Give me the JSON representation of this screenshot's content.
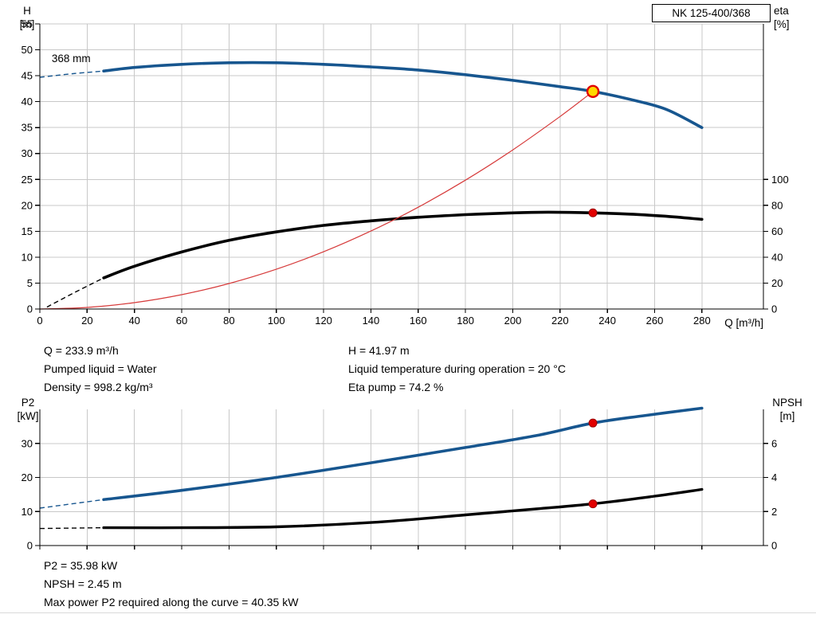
{
  "colors": {
    "curve_blue": "#17568f",
    "curve_black": "#000000",
    "curve_red": "#d63a3a",
    "marker_red": "#e10000",
    "marker_yellow": "#ffd800",
    "grid": "#c8c8c8",
    "axis": "#000000"
  },
  "chart_data": [
    {
      "id": "hq-chart",
      "type": "line",
      "title": "NK 125-400/368",
      "xlabel": "Q [m³/h]",
      "ylabel_left_lines": [
        "H",
        "[m]"
      ],
      "ylabel_right_lines": [
        "eta",
        "[%]"
      ],
      "xlim": [
        0,
        306
      ],
      "ylim_left": [
        0,
        55
      ],
      "ylim_right": [
        0,
        220
      ],
      "xticks": [
        0,
        20,
        40,
        60,
        80,
        100,
        120,
        140,
        160,
        180,
        200,
        220,
        240,
        260,
        280
      ],
      "yticks_left": [
        0,
        5,
        10,
        15,
        20,
        25,
        30,
        35,
        40,
        45,
        50,
        55
      ],
      "yticks_right": [
        0,
        20,
        40,
        60,
        80,
        100
      ],
      "grid": true,
      "legend": "none",
      "series": [
        {
          "name": "head-curve",
          "axis": "left",
          "color": "#17568f",
          "width": 3.6,
          "dash_points": [
            [
              0,
              44.7
            ],
            [
              14,
              45.4
            ],
            [
              27,
              45.9
            ]
          ],
          "points": [
            [
              27,
              45.9
            ],
            [
              40,
              46.6
            ],
            [
              60,
              47.2
            ],
            [
              80,
              47.5
            ],
            [
              100,
              47.5
            ],
            [
              120,
              47.2
            ],
            [
              140,
              46.7
            ],
            [
              160,
              46.1
            ],
            [
              180,
              45.2
            ],
            [
              200,
              44.1
            ],
            [
              220,
              42.9
            ],
            [
              233.9,
              41.97
            ],
            [
              250,
              40.4
            ],
            [
              265,
              38.5
            ],
            [
              280,
              35.0
            ]
          ]
        },
        {
          "name": "efficiency-curve",
          "axis": "right",
          "color": "#000000",
          "width": 3.6,
          "dash_points": [
            [
              3,
              1.5
            ],
            [
              15,
              13
            ],
            [
              27,
              24
            ]
          ],
          "points": [
            [
              27,
              24
            ],
            [
              40,
              33
            ],
            [
              60,
              44
            ],
            [
              80,
              53
            ],
            [
              100,
              59.5
            ],
            [
              120,
              64.5
            ],
            [
              140,
              68
            ],
            [
              160,
              70.8
            ],
            [
              180,
              72.8
            ],
            [
              200,
              74.2
            ],
            [
              215,
              74.7
            ],
            [
              233.9,
              74.2
            ],
            [
              250,
              73.2
            ],
            [
              265,
              71.5
            ],
            [
              280,
              69.2
            ]
          ]
        },
        {
          "name": "system-curve",
          "axis": "left",
          "color": "#d63a3a",
          "width": 1.2,
          "points": [
            [
              0,
              0
            ],
            [
              20,
              0.31
            ],
            [
              40,
              1.23
            ],
            [
              60,
              2.76
            ],
            [
              80,
              4.91
            ],
            [
              100,
              7.67
            ],
            [
              120,
              11.05
            ],
            [
              140,
              15.04
            ],
            [
              160,
              19.64
            ],
            [
              180,
              24.86
            ],
            [
              200,
              30.69
            ],
            [
              220,
              37.14
            ],
            [
              233.9,
              41.97
            ]
          ]
        }
      ],
      "markers": [
        {
          "name": "duty-point-marker",
          "x": 233.9,
          "y": 41.97,
          "axis": "left",
          "r": 7,
          "fill": "#ffd800",
          "stroke": "#e10000",
          "stroke_width": 2.4
        },
        {
          "name": "eta-point-marker",
          "x": 233.9,
          "y": 74.2,
          "axis": "right",
          "r": 5,
          "fill": "#e10000",
          "stroke": "#9b0000",
          "stroke_width": 1
        }
      ],
      "annotations": [
        {
          "name": "impeller-diameter-label",
          "text": "368 mm",
          "x": 5,
          "y": 47.6
        }
      ]
    },
    {
      "id": "p2-npsh-chart",
      "type": "line",
      "title": "",
      "xlabel": "",
      "ylabel_left_lines": [
        "P2",
        "[kW]"
      ],
      "ylabel_right_lines": [
        "NPSH",
        "[m]"
      ],
      "xlim": [
        0,
        306
      ],
      "ylim_left": [
        0,
        40
      ],
      "ylim_right": [
        0,
        8
      ],
      "xticks": [
        0,
        20,
        40,
        60,
        80,
        100,
        120,
        140,
        160,
        180,
        200,
        220,
        240,
        260,
        280
      ],
      "yticks_left": [
        0,
        10,
        20,
        30
      ],
      "yticks_right": [
        0,
        2,
        4,
        6
      ],
      "grid": true,
      "legend": "none",
      "series": [
        {
          "name": "p2-curve",
          "axis": "left",
          "color": "#17568f",
          "width": 3.6,
          "dash_points": [
            [
              0,
              11
            ],
            [
              27,
              13.5
            ]
          ],
          "points": [
            [
              27,
              13.5
            ],
            [
              60,
              16.2
            ],
            [
              100,
              20.0
            ],
            [
              140,
              24.3
            ],
            [
              180,
              28.8
            ],
            [
              210,
              32.3
            ],
            [
              233.9,
              35.98
            ],
            [
              255,
              38.1
            ],
            [
              280,
              40.35
            ]
          ]
        },
        {
          "name": "npsh-curve",
          "axis": "right",
          "color": "#000000",
          "width": 3.4,
          "dash_points": [
            [
              0,
              1.0
            ],
            [
              27,
              1.05
            ]
          ],
          "points": [
            [
              27,
              1.05
            ],
            [
              60,
              1.05
            ],
            [
              100,
              1.1
            ],
            [
              140,
              1.35
            ],
            [
              180,
              1.8
            ],
            [
              210,
              2.15
            ],
            [
              233.9,
              2.45
            ],
            [
              260,
              2.9
            ],
            [
              280,
              3.3
            ]
          ]
        }
      ],
      "markers": [
        {
          "name": "p2-point-marker",
          "x": 233.9,
          "y": 35.98,
          "axis": "left",
          "r": 5,
          "fill": "#e10000",
          "stroke": "#9b0000",
          "stroke_width": 1
        },
        {
          "name": "npsh-point-marker",
          "x": 233.9,
          "y": 2.45,
          "axis": "right",
          "r": 5,
          "fill": "#e10000",
          "stroke": "#9b0000",
          "stroke_width": 1
        }
      ]
    }
  ],
  "info_top": {
    "col1": [
      "Q = 233.9 m³/h",
      "Pumped liquid = Water",
      "Density = 998.2 kg/m³"
    ],
    "col2": [
      "H = 41.97 m",
      "Liquid temperature during operation = 20 °C",
      "Eta pump = 74.2 %"
    ]
  },
  "info_bottom": [
    "P2 = 35.98 kW",
    "NPSH = 2.45 m",
    "Max power P2 required along the curve = 40.35 kW"
  ]
}
